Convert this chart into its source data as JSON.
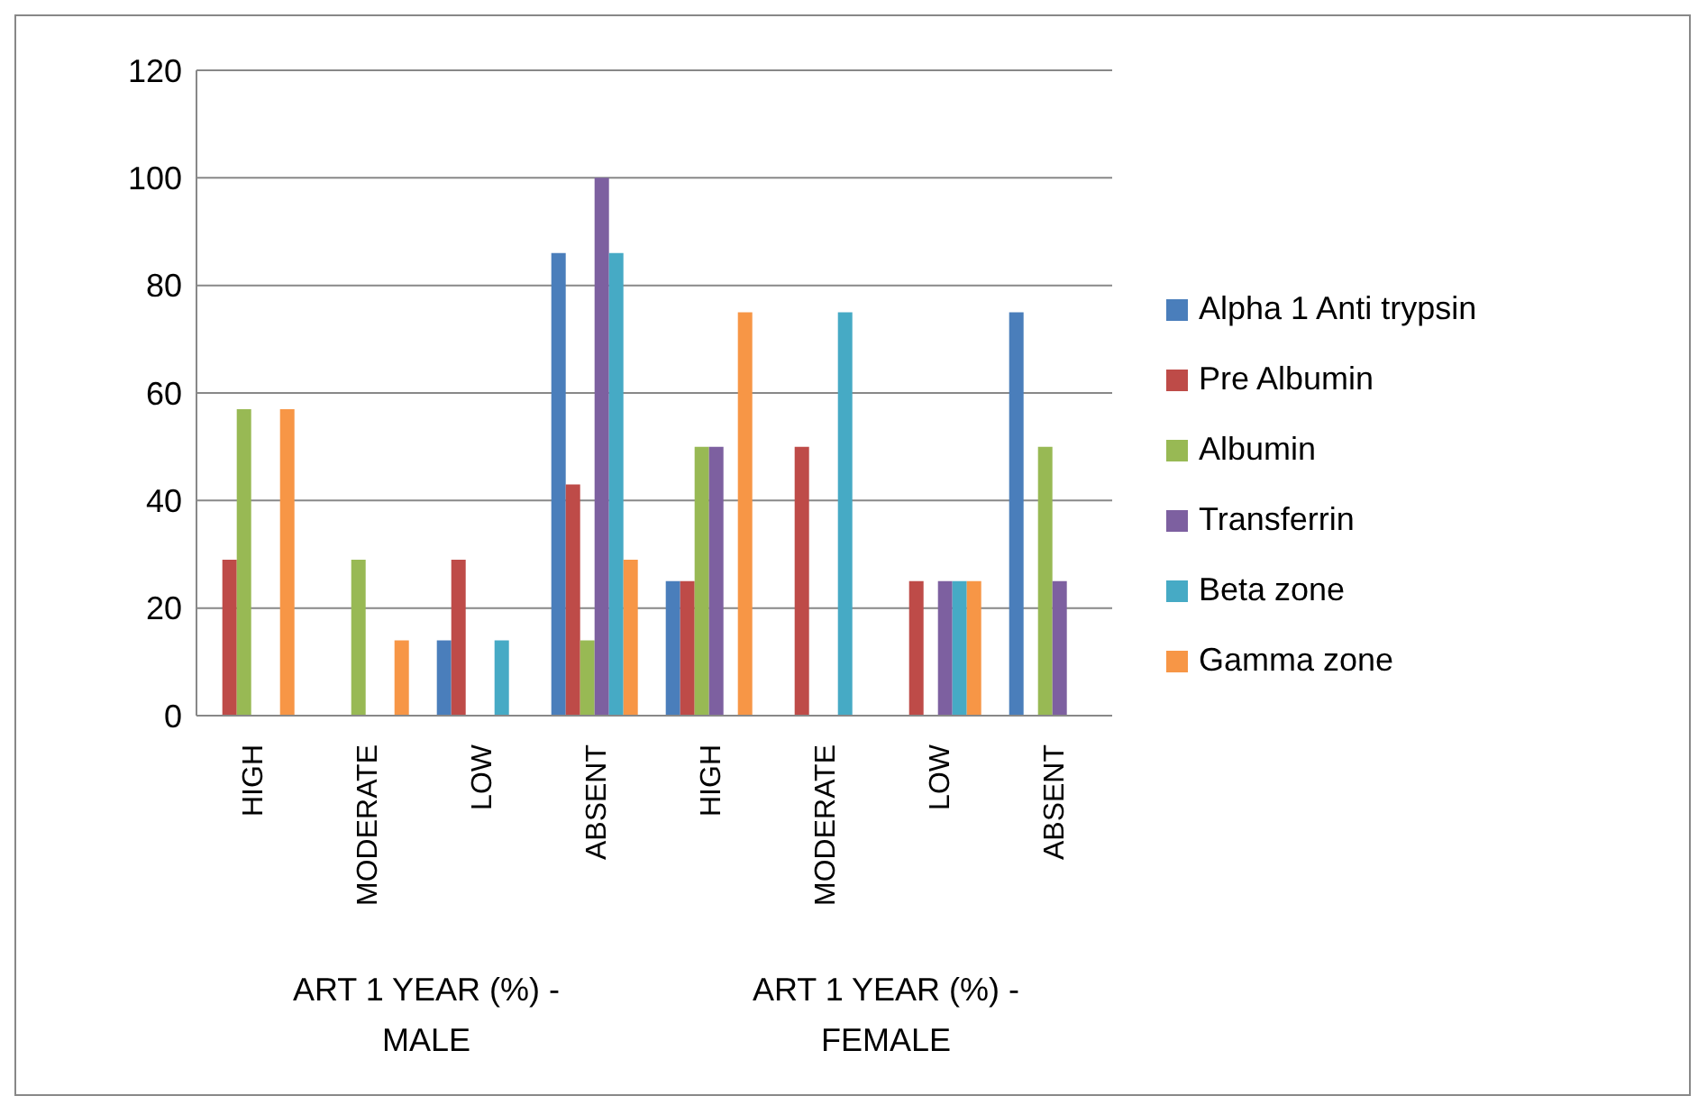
{
  "chart_data": {
    "type": "bar",
    "categories": [
      "HIGH",
      "MODERATE",
      "LOW",
      "ABSENT",
      "HIGH",
      "MODERATE",
      "LOW",
      "ABSENT"
    ],
    "series": [
      {
        "name": "Alpha 1 Anti trypsin",
        "color": "#4a7ebb",
        "values": [
          0,
          0,
          14,
          86,
          25,
          0,
          0,
          75
        ]
      },
      {
        "name": "Pre Albumin",
        "color": "#be4b48",
        "values": [
          29,
          0,
          29,
          43,
          25,
          50,
          25,
          0
        ]
      },
      {
        "name": "Albumin",
        "color": "#98b954",
        "values": [
          57,
          29,
          0,
          14,
          50,
          0,
          0,
          50
        ]
      },
      {
        "name": "Transferrin",
        "color": "#7d60a0",
        "values": [
          0,
          0,
          0,
          100,
          50,
          0,
          25,
          25
        ]
      },
      {
        "name": "Beta zone",
        "color": "#46aac5",
        "values": [
          0,
          0,
          14,
          86,
          0,
          75,
          25,
          0
        ]
      },
      {
        "name": "Gamma zone",
        "color": "#f79646",
        "values": [
          57,
          14,
          0,
          29,
          75,
          0,
          25,
          0
        ]
      }
    ],
    "annotations": [
      "ART 1 YEAR (%) - MALE",
      "ART 1 YEAR (%) - FEMALE"
    ],
    "ylim": [
      0,
      120
    ],
    "yticks": [
      0,
      20,
      40,
      60,
      80,
      100,
      120
    ],
    "grid": "y",
    "legend": "right"
  }
}
